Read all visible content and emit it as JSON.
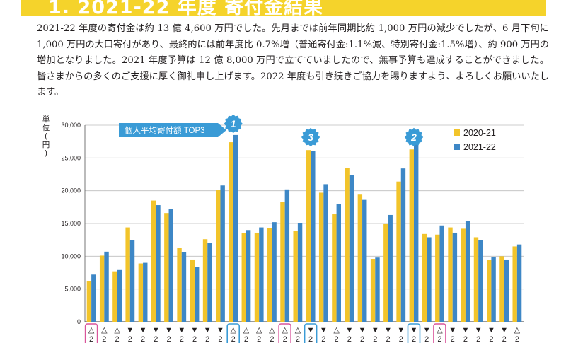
{
  "section_title": "1. 2021-22 年度 寄付金結果",
  "paragraph": "2021-22 年度の寄付金は約 13 億 4,600 万円でした。先月までは前年同期比約 1,000 万円の減少でしたが、6 月下旬に 1,000 万円の大口寄付があり、最終的には前年度比 0.7%増（普通寄付金:1.1%減、特別寄付金:1.5%増）、約 900 万円の増加となりました。2021 年度予算は 12 億 8,000 万円で立てていましたので、無事予算も達成することができました。皆さまからの多くのご支援に厚く御礼申し上げます。2022 年度も引き続きご協力を賜りますよう、よろしくお願いいたします。",
  "colors": {
    "banner": "#f5d32b",
    "series_2020": "#f2c42a",
    "series_2021": "#3d87c6",
    "callout": "#3a9bd6",
    "highlight_pink": "#d9559b",
    "highlight_blue": "#3a9bd6"
  },
  "chart_data": {
    "type": "bar",
    "ylabel": "単位(円)",
    "ylim": [
      0,
      30000
    ],
    "yticks": [
      "0",
      "5,000",
      "10,000",
      "15,000",
      "20,000",
      "25,000",
      "30,000"
    ],
    "grid": true,
    "legend_position": "top-right",
    "series": [
      {
        "name": "2020-21",
        "values": [
          6200,
          10100,
          7700,
          14400,
          8900,
          18500,
          16600,
          11300,
          9500,
          12600,
          20100,
          27400,
          13500,
          13600,
          14300,
          18300,
          13900,
          26200,
          19700,
          16400,
          23500,
          19400,
          9600,
          14900,
          21400,
          26300,
          13400,
          13300,
          14400,
          14200,
          12900,
          9400,
          10000,
          11500
        ]
      },
      {
        "name": "2021-22",
        "values": [
          7200,
          10700,
          7900,
          12500,
          9000,
          17800,
          17200,
          10600,
          8400,
          12000,
          20800,
          28500,
          14000,
          14400,
          15200,
          20200,
          15100,
          26100,
          21000,
          18000,
          22400,
          18600,
          9800,
          16300,
          23400,
          27100,
          12900,
          14700,
          13600,
          15400,
          12500,
          9900,
          9500,
          11800
        ]
      }
    ],
    "tick_marks": [
      "△",
      "△",
      "△",
      "▼",
      "▼",
      "▼",
      "▼",
      "▼",
      "▼",
      "▼",
      "▼",
      "△",
      "△",
      "△",
      "△",
      "△",
      "△",
      "▼",
      "▼",
      "△",
      "▼",
      "▼",
      "▼",
      "▼",
      "▼",
      "▼",
      "▼",
      "△",
      "▼",
      "▼",
      "▼",
      "▼",
      "▼",
      "△"
    ],
    "tick_digit": "2",
    "annotations": [
      {
        "text": "個人平均寄付額 TOP3"
      },
      {
        "text": "1",
        "category_index": 11
      },
      {
        "text": "3",
        "category_index": 17
      },
      {
        "text": "2",
        "category_index": 25
      }
    ],
    "highlight_boxes": [
      {
        "category_index": 0,
        "color": "pink"
      },
      {
        "category_index": 11,
        "color": "blue"
      },
      {
        "category_index": 15,
        "color": "pink"
      },
      {
        "category_index": 17,
        "color": "blue"
      },
      {
        "category_index": 25,
        "color": "blue"
      },
      {
        "category_index": 27,
        "color": "pink"
      }
    ]
  }
}
